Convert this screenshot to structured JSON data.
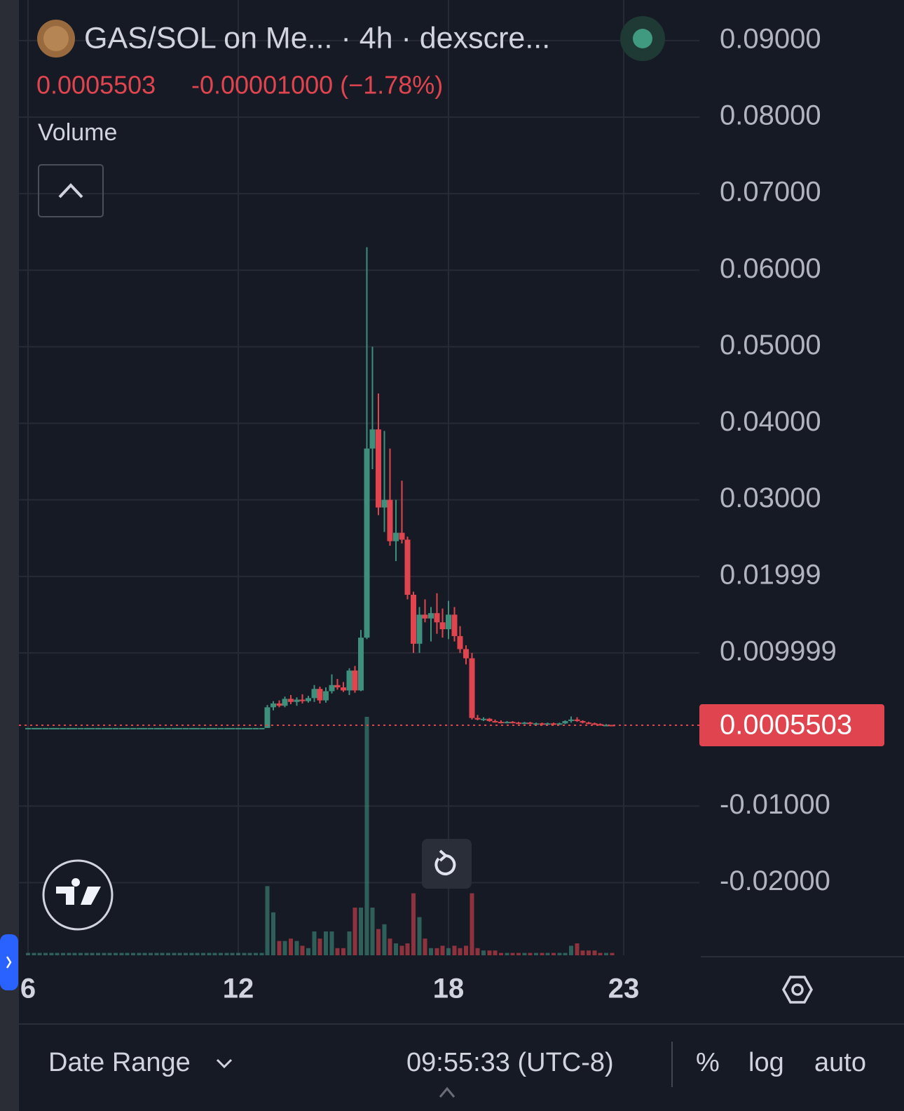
{
  "chart_data": {
    "type": "candlestick",
    "title": "GAS/SOL on Me... · 4h · dexscre...",
    "last_price": 0.0005503,
    "change_label": "-0.00001000 (−1.78%)",
    "volume_label": "Volume",
    "up_color": "#3f8f7d",
    "down_color": "#e0454f",
    "grid": true,
    "xlim": [
      5.74,
      25.16
    ],
    "xticks": [
      6,
      12,
      18,
      23
    ],
    "ylim": [
      -0.0295,
      0.0953
    ],
    "yticks": [
      {
        "value": 0.09,
        "label": "0.09000"
      },
      {
        "value": 0.08,
        "label": "0.08000"
      },
      {
        "value": 0.07,
        "label": "0.07000"
      },
      {
        "value": 0.06,
        "label": "0.06000"
      },
      {
        "value": 0.05,
        "label": "0.05000"
      },
      {
        "value": 0.04,
        "label": "0.04000"
      },
      {
        "value": 0.03,
        "label": "0.03000"
      },
      0.01999,
      0.009999,
      {
        "value": -0.01,
        "label": "-0.01000"
      },
      {
        "value": -0.02,
        "label": "-0.02000"
      }
    ],
    "x": [
      6,
      6.17,
      6.33,
      6.5,
      6.67,
      6.83,
      7,
      7.17,
      7.33,
      7.5,
      7.67,
      7.83,
      8,
      8.17,
      8.33,
      8.5,
      8.67,
      8.83,
      9,
      9.17,
      9.33,
      9.5,
      9.67,
      9.83,
      10,
      10.17,
      10.33,
      10.5,
      10.67,
      10.83,
      11,
      11.17,
      11.33,
      11.5,
      11.67,
      11.83,
      12,
      12.17,
      12.33,
      12.5,
      12.67,
      12.83,
      13,
      13.17,
      13.33,
      13.5,
      13.67,
      13.83,
      14,
      14.17,
      14.33,
      14.5,
      14.67,
      14.83,
      15,
      15.17,
      15.33,
      15.5,
      15.67,
      15.83,
      16,
      16.17,
      16.33,
      16.5,
      16.67,
      16.83,
      17,
      17.17,
      17.33,
      17.5,
      17.67,
      17.83,
      18,
      18.17,
      18.33,
      18.5,
      18.67,
      18.83,
      19,
      19.17,
      19.33,
      19.5,
      19.67,
      19.83,
      20,
      20.17,
      20.33,
      20.5,
      20.67,
      20.83,
      21,
      21.17,
      21.33,
      21.5,
      21.67,
      21.83,
      22,
      22.17,
      22.33,
      22.5,
      22.67
    ],
    "ohlc": [
      [
        0.0002,
        0.0002,
        0.0002,
        0.0002
      ],
      [
        0.0002,
        0.0002,
        0.0002,
        0.0002
      ],
      [
        0.0002,
        0.0002,
        0.0002,
        0.0002
      ],
      [
        0.0002,
        0.0002,
        0.0002,
        0.0002
      ],
      [
        0.0002,
        0.0002,
        0.0002,
        0.0002
      ],
      [
        0.0002,
        0.0002,
        0.0002,
        0.0002
      ],
      [
        0.0002,
        0.0002,
        0.0002,
        0.0002
      ],
      [
        0.0002,
        0.0002,
        0.0002,
        0.0002
      ],
      [
        0.0002,
        0.0002,
        0.0002,
        0.0002
      ],
      [
        0.0002,
        0.0002,
        0.0002,
        0.0002
      ],
      [
        0.0002,
        0.0002,
        0.0002,
        0.0002
      ],
      [
        0.0002,
        0.0002,
        0.0002,
        0.0002
      ],
      [
        0.0002,
        0.0002,
        0.0002,
        0.0002
      ],
      [
        0.0002,
        0.0002,
        0.0002,
        0.0002
      ],
      [
        0.0002,
        0.0002,
        0.0002,
        0.0002
      ],
      [
        0.0002,
        0.0002,
        0.0002,
        0.0002
      ],
      [
        0.0002,
        0.0002,
        0.0002,
        0.0002
      ],
      [
        0.0002,
        0.0002,
        0.0002,
        0.0002
      ],
      [
        0.0002,
        0.0002,
        0.0002,
        0.0002
      ],
      [
        0.0002,
        0.0002,
        0.0002,
        0.0002
      ],
      [
        0.0002,
        0.0002,
        0.0002,
        0.0002
      ],
      [
        0.0002,
        0.0002,
        0.0002,
        0.0002
      ],
      [
        0.0002,
        0.0002,
        0.0002,
        0.0002
      ],
      [
        0.0002,
        0.0002,
        0.0002,
        0.0002
      ],
      [
        0.0002,
        0.0002,
        0.0002,
        0.0002
      ],
      [
        0.0002,
        0.0002,
        0.0002,
        0.0002
      ],
      [
        0.0002,
        0.0002,
        0.0002,
        0.0002
      ],
      [
        0.0002,
        0.0002,
        0.0002,
        0.0002
      ],
      [
        0.0002,
        0.0002,
        0.0002,
        0.0002
      ],
      [
        0.0002,
        0.0002,
        0.0002,
        0.0002
      ],
      [
        0.0002,
        0.0002,
        0.0002,
        0.0002
      ],
      [
        0.0002,
        0.0002,
        0.0002,
        0.0002
      ],
      [
        0.0002,
        0.0002,
        0.0002,
        0.0002
      ],
      [
        0.0002,
        0.0002,
        0.0002,
        0.0002
      ],
      [
        0.0002,
        0.0002,
        0.0002,
        0.0002
      ],
      [
        0.0002,
        0.0002,
        0.0002,
        0.0002
      ],
      [
        0.0002,
        0.0002,
        0.0002,
        0.0002
      ],
      [
        0.0002,
        0.0002,
        0.0002,
        0.0002
      ],
      [
        0.0002,
        0.0002,
        0.0002,
        0.0002
      ],
      [
        0.0002,
        0.0002,
        0.0002,
        0.0002
      ],
      [
        0.0002,
        0.0002,
        0.0002,
        0.0002
      ],
      [
        0.0002,
        0.0032,
        0.0002,
        0.0029
      ],
      [
        0.0029,
        0.0037,
        0.0025,
        0.0034
      ],
      [
        0.0034,
        0.0038,
        0.0029,
        0.0031
      ],
      [
        0.0031,
        0.0043,
        0.0029,
        0.004
      ],
      [
        0.004,
        0.0045,
        0.0033,
        0.0036
      ],
      [
        0.0036,
        0.0042,
        0.0031,
        0.0039
      ],
      [
        0.0039,
        0.0046,
        0.0034,
        0.0037
      ],
      [
        0.0037,
        0.0044,
        0.0035,
        0.0041
      ],
      [
        0.0041,
        0.0058,
        0.0036,
        0.0053
      ],
      [
        0.0053,
        0.0056,
        0.0034,
        0.0038
      ],
      [
        0.0038,
        0.0055,
        0.0035,
        0.005
      ],
      [
        0.005,
        0.0072,
        0.0047,
        0.0058
      ],
      [
        0.0058,
        0.0066,
        0.0052,
        0.0055
      ],
      [
        0.0055,
        0.0062,
        0.0049,
        0.0051
      ],
      [
        0.0051,
        0.008,
        0.0045,
        0.0077
      ],
      [
        0.0077,
        0.0083,
        0.0048,
        0.0051
      ],
      [
        0.0051,
        0.013,
        0.005,
        0.012
      ],
      [
        0.012,
        0.063,
        0.0118,
        0.0367
      ],
      [
        0.0367,
        0.05,
        0.034,
        0.0392
      ],
      [
        0.0392,
        0.0439,
        0.028,
        0.029
      ],
      [
        0.029,
        0.039,
        0.0258,
        0.03
      ],
      [
        0.03,
        0.0367,
        0.024,
        0.0246
      ],
      [
        0.0246,
        0.03,
        0.022,
        0.0257
      ],
      [
        0.0257,
        0.0325,
        0.0243,
        0.0248
      ],
      [
        0.0248,
        0.0252,
        0.017,
        0.0176
      ],
      [
        0.0176,
        0.018,
        0.01,
        0.0112
      ],
      [
        0.0112,
        0.016,
        0.01,
        0.015
      ],
      [
        0.015,
        0.017,
        0.014,
        0.0145
      ],
      [
        0.0145,
        0.016,
        0.0115,
        0.0152
      ],
      [
        0.0152,
        0.0178,
        0.0125,
        0.014
      ],
      [
        0.014,
        0.0158,
        0.012,
        0.0131
      ],
      [
        0.0131,
        0.0168,
        0.0118,
        0.015
      ],
      [
        0.015,
        0.016,
        0.0115,
        0.0122
      ],
      [
        0.0122,
        0.0135,
        0.01,
        0.0105
      ],
      [
        0.0105,
        0.011,
        0.0085,
        0.0093
      ],
      [
        0.0093,
        0.01,
        0.0013,
        0.0015
      ],
      [
        0.0015,
        0.0019,
        0.0012,
        0.0013
      ],
      [
        0.0013,
        0.0016,
        0.0011,
        0.0014
      ],
      [
        0.0014,
        0.0015,
        0.001,
        0.0011
      ],
      [
        0.0011,
        0.0013,
        0.0009,
        0.001
      ],
      [
        0.001,
        0.0012,
        0.0008,
        0.0009
      ],
      [
        0.0009,
        0.0011,
        0.0008,
        0.001
      ],
      [
        0.001,
        0.0011,
        0.0008,
        0.0009
      ],
      [
        0.0009,
        0.001,
        0.0007,
        0.0008
      ],
      [
        0.0008,
        0.001,
        0.0007,
        0.0009
      ],
      [
        0.0009,
        0.001,
        0.0007,
        0.0008
      ],
      [
        0.0008,
        0.0009,
        0.0007,
        0.0008
      ],
      [
        0.0008,
        0.0009,
        0.0006,
        0.0007
      ],
      [
        0.0007,
        0.0009,
        0.0006,
        0.0008
      ],
      [
        0.0008,
        0.0009,
        0.0006,
        0.0007
      ],
      [
        0.0007,
        0.0009,
        0.0006,
        0.0008
      ],
      [
        0.0008,
        0.0012,
        0.0007,
        0.0011
      ],
      [
        0.0011,
        0.0017,
        0.0009,
        0.0013
      ],
      [
        0.0013,
        0.0016,
        0.001,
        0.0011
      ],
      [
        0.0011,
        0.0012,
        0.0008,
        0.0009
      ],
      [
        0.0009,
        0.001,
        0.0007,
        0.0008
      ],
      [
        0.0008,
        0.0009,
        0.0006,
        0.0007
      ],
      [
        0.0007,
        0.0008,
        0.0005,
        0.0006
      ],
      [
        0.0006,
        0.0007,
        0.0005,
        0.0006
      ],
      [
        0.0006,
        0.0006,
        0.0005,
        0.0005503
      ]
    ],
    "volume": [
      1,
      1,
      1,
      1,
      1,
      1,
      1,
      1,
      1,
      1,
      1,
      1,
      1,
      1,
      1,
      1,
      1,
      1,
      1,
      1,
      1,
      1,
      1,
      1,
      1,
      1,
      1,
      1,
      1,
      1,
      1,
      1,
      1,
      1,
      1,
      1,
      1,
      1,
      1,
      1,
      1,
      29,
      18,
      6,
      6,
      7,
      6,
      4,
      3,
      10,
      7,
      10,
      10,
      3,
      3,
      10,
      20,
      20,
      100,
      20,
      11,
      13,
      7,
      5,
      4,
      5,
      26,
      16,
      7,
      3,
      3,
      4,
      3,
      4,
      3,
      4,
      26,
      3,
      2,
      2,
      2,
      1,
      1,
      1,
      1,
      1,
      1,
      1,
      1,
      1,
      1,
      1,
      1,
      4,
      5,
      2,
      2,
      2,
      1,
      1,
      1
    ]
  },
  "footer": {
    "date_range": "Date Range",
    "clock": "09:55:33 (UTC-8)",
    "percent": "%",
    "log": "log",
    "auto": "auto"
  }
}
